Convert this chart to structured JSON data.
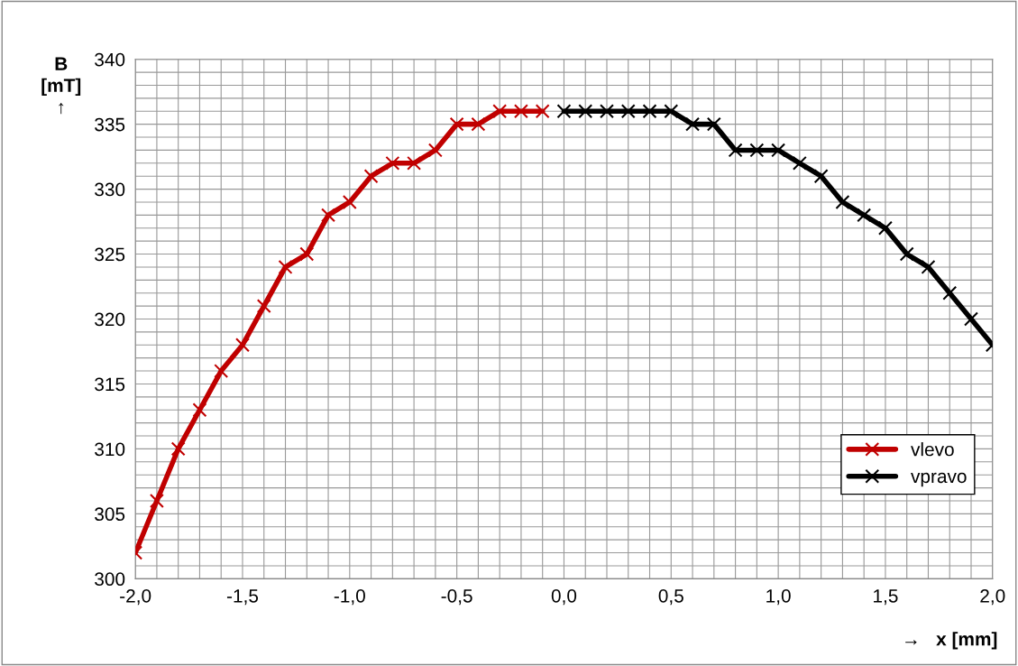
{
  "chart_data": {
    "type": "line",
    "xlabel": "→   x [mm]",
    "ylabel": "B\n[mT]\n↑",
    "series": [
      {
        "name": "vlevo",
        "color": "#c00000",
        "x": [
          -2.0,
          -1.9,
          -1.8,
          -1.7,
          -1.6,
          -1.5,
          -1.4,
          -1.3,
          -1.2,
          -1.1,
          -1.0,
          -0.9,
          -0.8,
          -0.7,
          -0.6,
          -0.5,
          -0.4,
          -0.3,
          -0.2,
          -0.1
        ],
        "values": [
          302,
          306,
          310,
          313,
          316,
          318,
          321,
          324,
          325,
          328,
          329,
          331,
          332,
          332,
          333,
          335,
          335,
          336,
          336,
          336
        ]
      },
      {
        "name": "vpravo",
        "color": "#000000",
        "x": [
          0.0,
          0.1,
          0.2,
          0.3,
          0.4,
          0.5,
          0.6,
          0.7,
          0.8,
          0.9,
          1.0,
          1.1,
          1.2,
          1.3,
          1.4,
          1.5,
          1.6,
          1.7,
          1.8,
          1.9,
          2.0
        ],
        "values": [
          336,
          336,
          336,
          336,
          336,
          336,
          335,
          335,
          333,
          333,
          333,
          332,
          331,
          329,
          328,
          327,
          325,
          324,
          322,
          320,
          318
        ]
      }
    ],
    "xlim": [
      -2.0,
      2.0
    ],
    "xticks": [
      {
        "value": -2.0,
        "label": "-2,0"
      },
      {
        "value": -1.5,
        "label": "-1,5"
      },
      {
        "value": -1.0,
        "label": "-1,0"
      },
      {
        "value": -0.5,
        "label": "-0,5"
      },
      {
        "value": 0.0,
        "label": "0,0"
      },
      {
        "value": 0.5,
        "label": "0,5"
      },
      {
        "value": 1.0,
        "label": "1,0"
      },
      {
        "value": 1.5,
        "label": "1,5"
      },
      {
        "value": 2.0,
        "label": "2,0"
      }
    ],
    "ylim": [
      300,
      340
    ],
    "yticks": [
      300,
      305,
      310,
      315,
      320,
      325,
      330,
      335,
      340
    ],
    "grid": true,
    "legend": "right",
    "marker": "cross",
    "line_style": "solid"
  }
}
